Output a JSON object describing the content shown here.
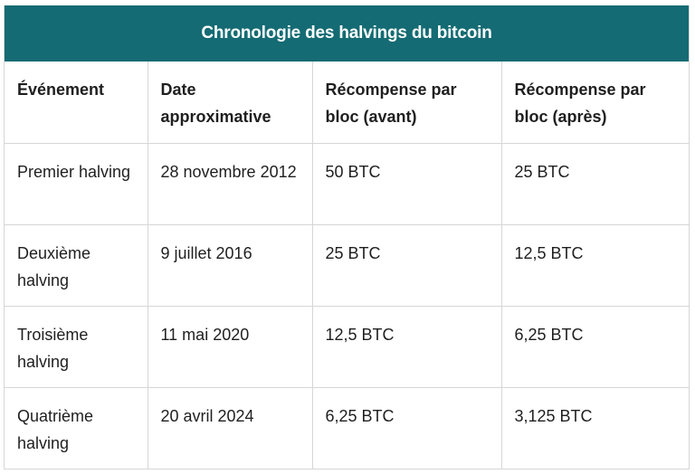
{
  "table": {
    "title": "Chronologie des halvings du bitcoin",
    "header_color": "#146b73",
    "columns": [
      "Événement",
      "Date approximative",
      "Récompense par bloc (avant)",
      "Récompense par bloc (après)"
    ],
    "rows": [
      [
        "Premier halving",
        "28 novembre 2012",
        "50 BTC",
        "25 BTC"
      ],
      [
        "Deuxième halving",
        "9 juillet 2016",
        "25 BTC",
        "12,5 BTC"
      ],
      [
        "Troisième halving",
        "11 mai 2020",
        "12,5 BTC",
        "6,25 BTC"
      ],
      [
        "Quatrième halving",
        "20 avril 2024",
        "6,25 BTC",
        "3,125 BTC"
      ]
    ]
  }
}
